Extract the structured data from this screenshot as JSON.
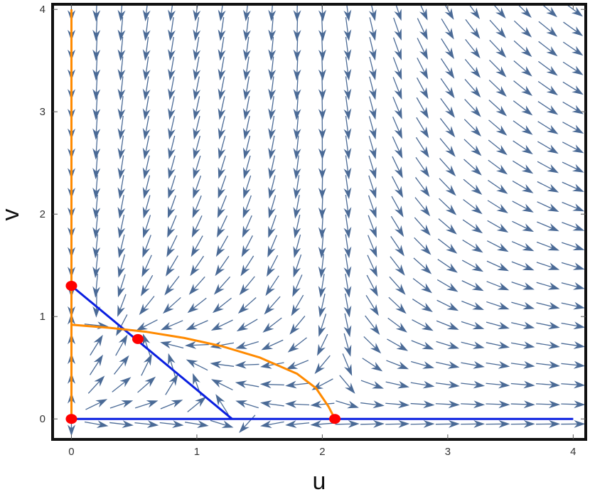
{
  "chart_data": {
    "type": "stream-vector-field",
    "title": "",
    "xlabel": "u",
    "ylabel": "v",
    "xlim": [
      -0.15,
      4.1
    ],
    "ylim": [
      -0.2,
      4.05
    ],
    "xticks": [
      "0",
      "1",
      "2",
      "3",
      "4"
    ],
    "yticks": [
      "0",
      "1",
      "2",
      "3",
      "4"
    ],
    "grid": false,
    "vector_field": {
      "u_range": [
        0,
        4
      ],
      "v_range": [
        -0.05,
        4
      ],
      "columns": 21,
      "rows": 22,
      "color": "#4a6a96"
    },
    "nullclines": {
      "u_nullclines": {
        "color": "#0a1fe0",
        "curves": [
          {
            "points": [
              [
                0,
                1.3
              ],
              [
                1.28,
                0
              ]
            ]
          },
          {
            "points": [
              [
                0,
                0
              ],
              [
                4.0,
                0
              ]
            ]
          }
        ]
      },
      "v_nullclines": {
        "color": "#ff8a00",
        "curves": [
          {
            "points": [
              [
                0,
                0
              ],
              [
                0,
                4.0
              ]
            ]
          },
          {
            "points": [
              [
                0,
                0.92
              ],
              [
                0.3,
                0.89
              ],
              [
                0.6,
                0.85
              ],
              [
                0.9,
                0.79
              ],
              [
                1.2,
                0.71
              ],
              [
                1.5,
                0.6
              ],
              [
                1.8,
                0.44
              ],
              [
                1.95,
                0.3
              ],
              [
                2.05,
                0.12
              ],
              [
                2.1,
                0.0
              ]
            ]
          }
        ]
      }
    },
    "equilibria": {
      "color": "#ff0000",
      "points": [
        [
          0,
          0
        ],
        [
          0,
          1.3
        ],
        [
          0.53,
          0.78
        ],
        [
          2.1,
          0.0
        ]
      ]
    }
  }
}
